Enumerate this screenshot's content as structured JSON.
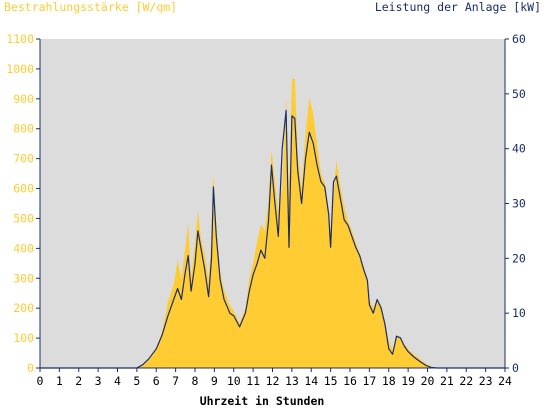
{
  "colors": {
    "background": "#ffffff",
    "plot_background": "#dcdcdc",
    "irradiance": "#ffcc33",
    "power": "#1a2d6b",
    "axis": "#1a2d6b"
  },
  "chart_data": {
    "type": "area",
    "left_title": "Bestrahlungsstärke [W/qm]",
    "right_title": "Leistung der Anlage [kW]",
    "xlabel": "Uhrzeit in Stunden",
    "xlim": [
      0,
      24
    ],
    "ylim_left": [
      0,
      1100
    ],
    "ylim_right": [
      0,
      60
    ],
    "x_ticks": [
      "0",
      "1",
      "2",
      "3",
      "4",
      "5",
      "6",
      "7",
      "8",
      "9",
      "10",
      "11",
      "12",
      "13",
      "14",
      "15",
      "16",
      "17",
      "18",
      "19",
      "20",
      "21",
      "22",
      "23",
      "24"
    ],
    "y_left_ticks": [
      "0",
      "100",
      "200",
      "300",
      "400",
      "500",
      "600",
      "700",
      "800",
      "900",
      "1000",
      "1100"
    ],
    "y_right_ticks": [
      "0",
      "10",
      "20",
      "30",
      "40",
      "50",
      "60"
    ],
    "grid": false,
    "series": [
      {
        "name": "Bestrahlungsstärke [W/qm]",
        "axis": "left",
        "style": "filled-area",
        "points": [
          [
            0,
            0
          ],
          [
            4.9,
            0
          ],
          [
            5.2,
            8
          ],
          [
            5.6,
            25
          ],
          [
            6.0,
            70
          ],
          [
            6.3,
            120
          ],
          [
            6.6,
            220
          ],
          [
            6.9,
            280
          ],
          [
            7.1,
            360
          ],
          [
            7.3,
            300
          ],
          [
            7.5,
            400
          ],
          [
            7.65,
            485
          ],
          [
            7.8,
            300
          ],
          [
            8.0,
            420
          ],
          [
            8.15,
            525
          ],
          [
            8.3,
            440
          ],
          [
            8.5,
            380
          ],
          [
            8.7,
            290
          ],
          [
            8.85,
            450
          ],
          [
            8.95,
            655
          ],
          [
            9.1,
            480
          ],
          [
            9.3,
            320
          ],
          [
            9.5,
            260
          ],
          [
            9.8,
            210
          ],
          [
            10.0,
            190
          ],
          [
            10.3,
            150
          ],
          [
            10.6,
            200
          ],
          [
            10.8,
            300
          ],
          [
            11.0,
            350
          ],
          [
            11.2,
            420
          ],
          [
            11.4,
            480
          ],
          [
            11.6,
            460
          ],
          [
            11.8,
            560
          ],
          [
            11.95,
            730
          ],
          [
            12.1,
            640
          ],
          [
            12.3,
            520
          ],
          [
            12.5,
            600
          ],
          [
            12.7,
            900
          ],
          [
            12.85,
            560
          ],
          [
            13.0,
            965
          ],
          [
            13.15,
            968
          ],
          [
            13.3,
            720
          ],
          [
            13.5,
            600
          ],
          [
            13.7,
            780
          ],
          [
            13.9,
            905
          ],
          [
            14.1,
            850
          ],
          [
            14.3,
            750
          ],
          [
            14.5,
            650
          ],
          [
            14.7,
            620
          ],
          [
            14.9,
            530
          ],
          [
            15.0,
            450
          ],
          [
            15.15,
            580
          ],
          [
            15.3,
            695
          ],
          [
            15.5,
            610
          ],
          [
            15.7,
            540
          ],
          [
            15.9,
            490
          ],
          [
            16.1,
            460
          ],
          [
            16.3,
            420
          ],
          [
            16.5,
            380
          ],
          [
            16.7,
            340
          ],
          [
            16.9,
            300
          ],
          [
            17.0,
            230
          ],
          [
            17.2,
            200
          ],
          [
            17.4,
            230
          ],
          [
            17.6,
            210
          ],
          [
            17.8,
            160
          ],
          [
            18.0,
            90
          ],
          [
            18.2,
            60
          ],
          [
            18.4,
            110
          ],
          [
            18.6,
            100
          ],
          [
            18.8,
            80
          ],
          [
            19.0,
            65
          ],
          [
            19.3,
            45
          ],
          [
            19.6,
            30
          ],
          [
            19.9,
            15
          ],
          [
            20.2,
            5
          ],
          [
            20.5,
            0
          ],
          [
            24,
            0
          ]
        ]
      },
      {
        "name": "Leistung der Anlage [kW]",
        "axis": "right",
        "style": "line",
        "points": [
          [
            0,
            0
          ],
          [
            5.0,
            0
          ],
          [
            5.3,
            0.6
          ],
          [
            5.6,
            1.6
          ],
          [
            6.0,
            3.5
          ],
          [
            6.3,
            6.0
          ],
          [
            6.6,
            9.5
          ],
          [
            6.9,
            12.5
          ],
          [
            7.1,
            14.5
          ],
          [
            7.3,
            12.5
          ],
          [
            7.5,
            17.5
          ],
          [
            7.65,
            20.5
          ],
          [
            7.8,
            14.0
          ],
          [
            8.0,
            19.0
          ],
          [
            8.15,
            25.0
          ],
          [
            8.3,
            22.0
          ],
          [
            8.5,
            18.0
          ],
          [
            8.7,
            13.0
          ],
          [
            8.85,
            20.0
          ],
          [
            8.95,
            33.0
          ],
          [
            9.1,
            24.0
          ],
          [
            9.3,
            16.0
          ],
          [
            9.5,
            12.5
          ],
          [
            9.8,
            10.0
          ],
          [
            10.0,
            9.5
          ],
          [
            10.3,
            7.5
          ],
          [
            10.6,
            10.0
          ],
          [
            10.8,
            14.0
          ],
          [
            11.0,
            17.0
          ],
          [
            11.2,
            19.0
          ],
          [
            11.4,
            21.5
          ],
          [
            11.6,
            20.0
          ],
          [
            11.8,
            27.0
          ],
          [
            11.95,
            37.0
          ],
          [
            12.1,
            31.0
          ],
          [
            12.3,
            24.0
          ],
          [
            12.5,
            40.0
          ],
          [
            12.7,
            47.0
          ],
          [
            12.85,
            22.0
          ],
          [
            13.0,
            46.0
          ],
          [
            13.15,
            45.5
          ],
          [
            13.3,
            36.0
          ],
          [
            13.5,
            30.0
          ],
          [
            13.7,
            38.0
          ],
          [
            13.9,
            43.0
          ],
          [
            14.1,
            41.0
          ],
          [
            14.3,
            37.0
          ],
          [
            14.5,
            34.0
          ],
          [
            14.7,
            33.0
          ],
          [
            14.9,
            28.0
          ],
          [
            15.0,
            22.0
          ],
          [
            15.15,
            34.0
          ],
          [
            15.3,
            35.0
          ],
          [
            15.5,
            31.0
          ],
          [
            15.7,
            27.0
          ],
          [
            15.9,
            26.0
          ],
          [
            16.1,
            24.0
          ],
          [
            16.3,
            22.0
          ],
          [
            16.5,
            20.5
          ],
          [
            16.7,
            18.0
          ],
          [
            16.9,
            16.0
          ],
          [
            17.0,
            11.5
          ],
          [
            17.2,
            10.0
          ],
          [
            17.4,
            12.5
          ],
          [
            17.6,
            11.0
          ],
          [
            17.8,
            8.0
          ],
          [
            18.0,
            3.5
          ],
          [
            18.2,
            2.5
          ],
          [
            18.4,
            5.8
          ],
          [
            18.6,
            5.5
          ],
          [
            18.8,
            4.0
          ],
          [
            19.0,
            3.0
          ],
          [
            19.3,
            2.0
          ],
          [
            19.6,
            1.2
          ],
          [
            19.9,
            0.5
          ],
          [
            20.2,
            0.1
          ],
          [
            20.5,
            0
          ],
          [
            24,
            0
          ]
        ]
      }
    ]
  }
}
